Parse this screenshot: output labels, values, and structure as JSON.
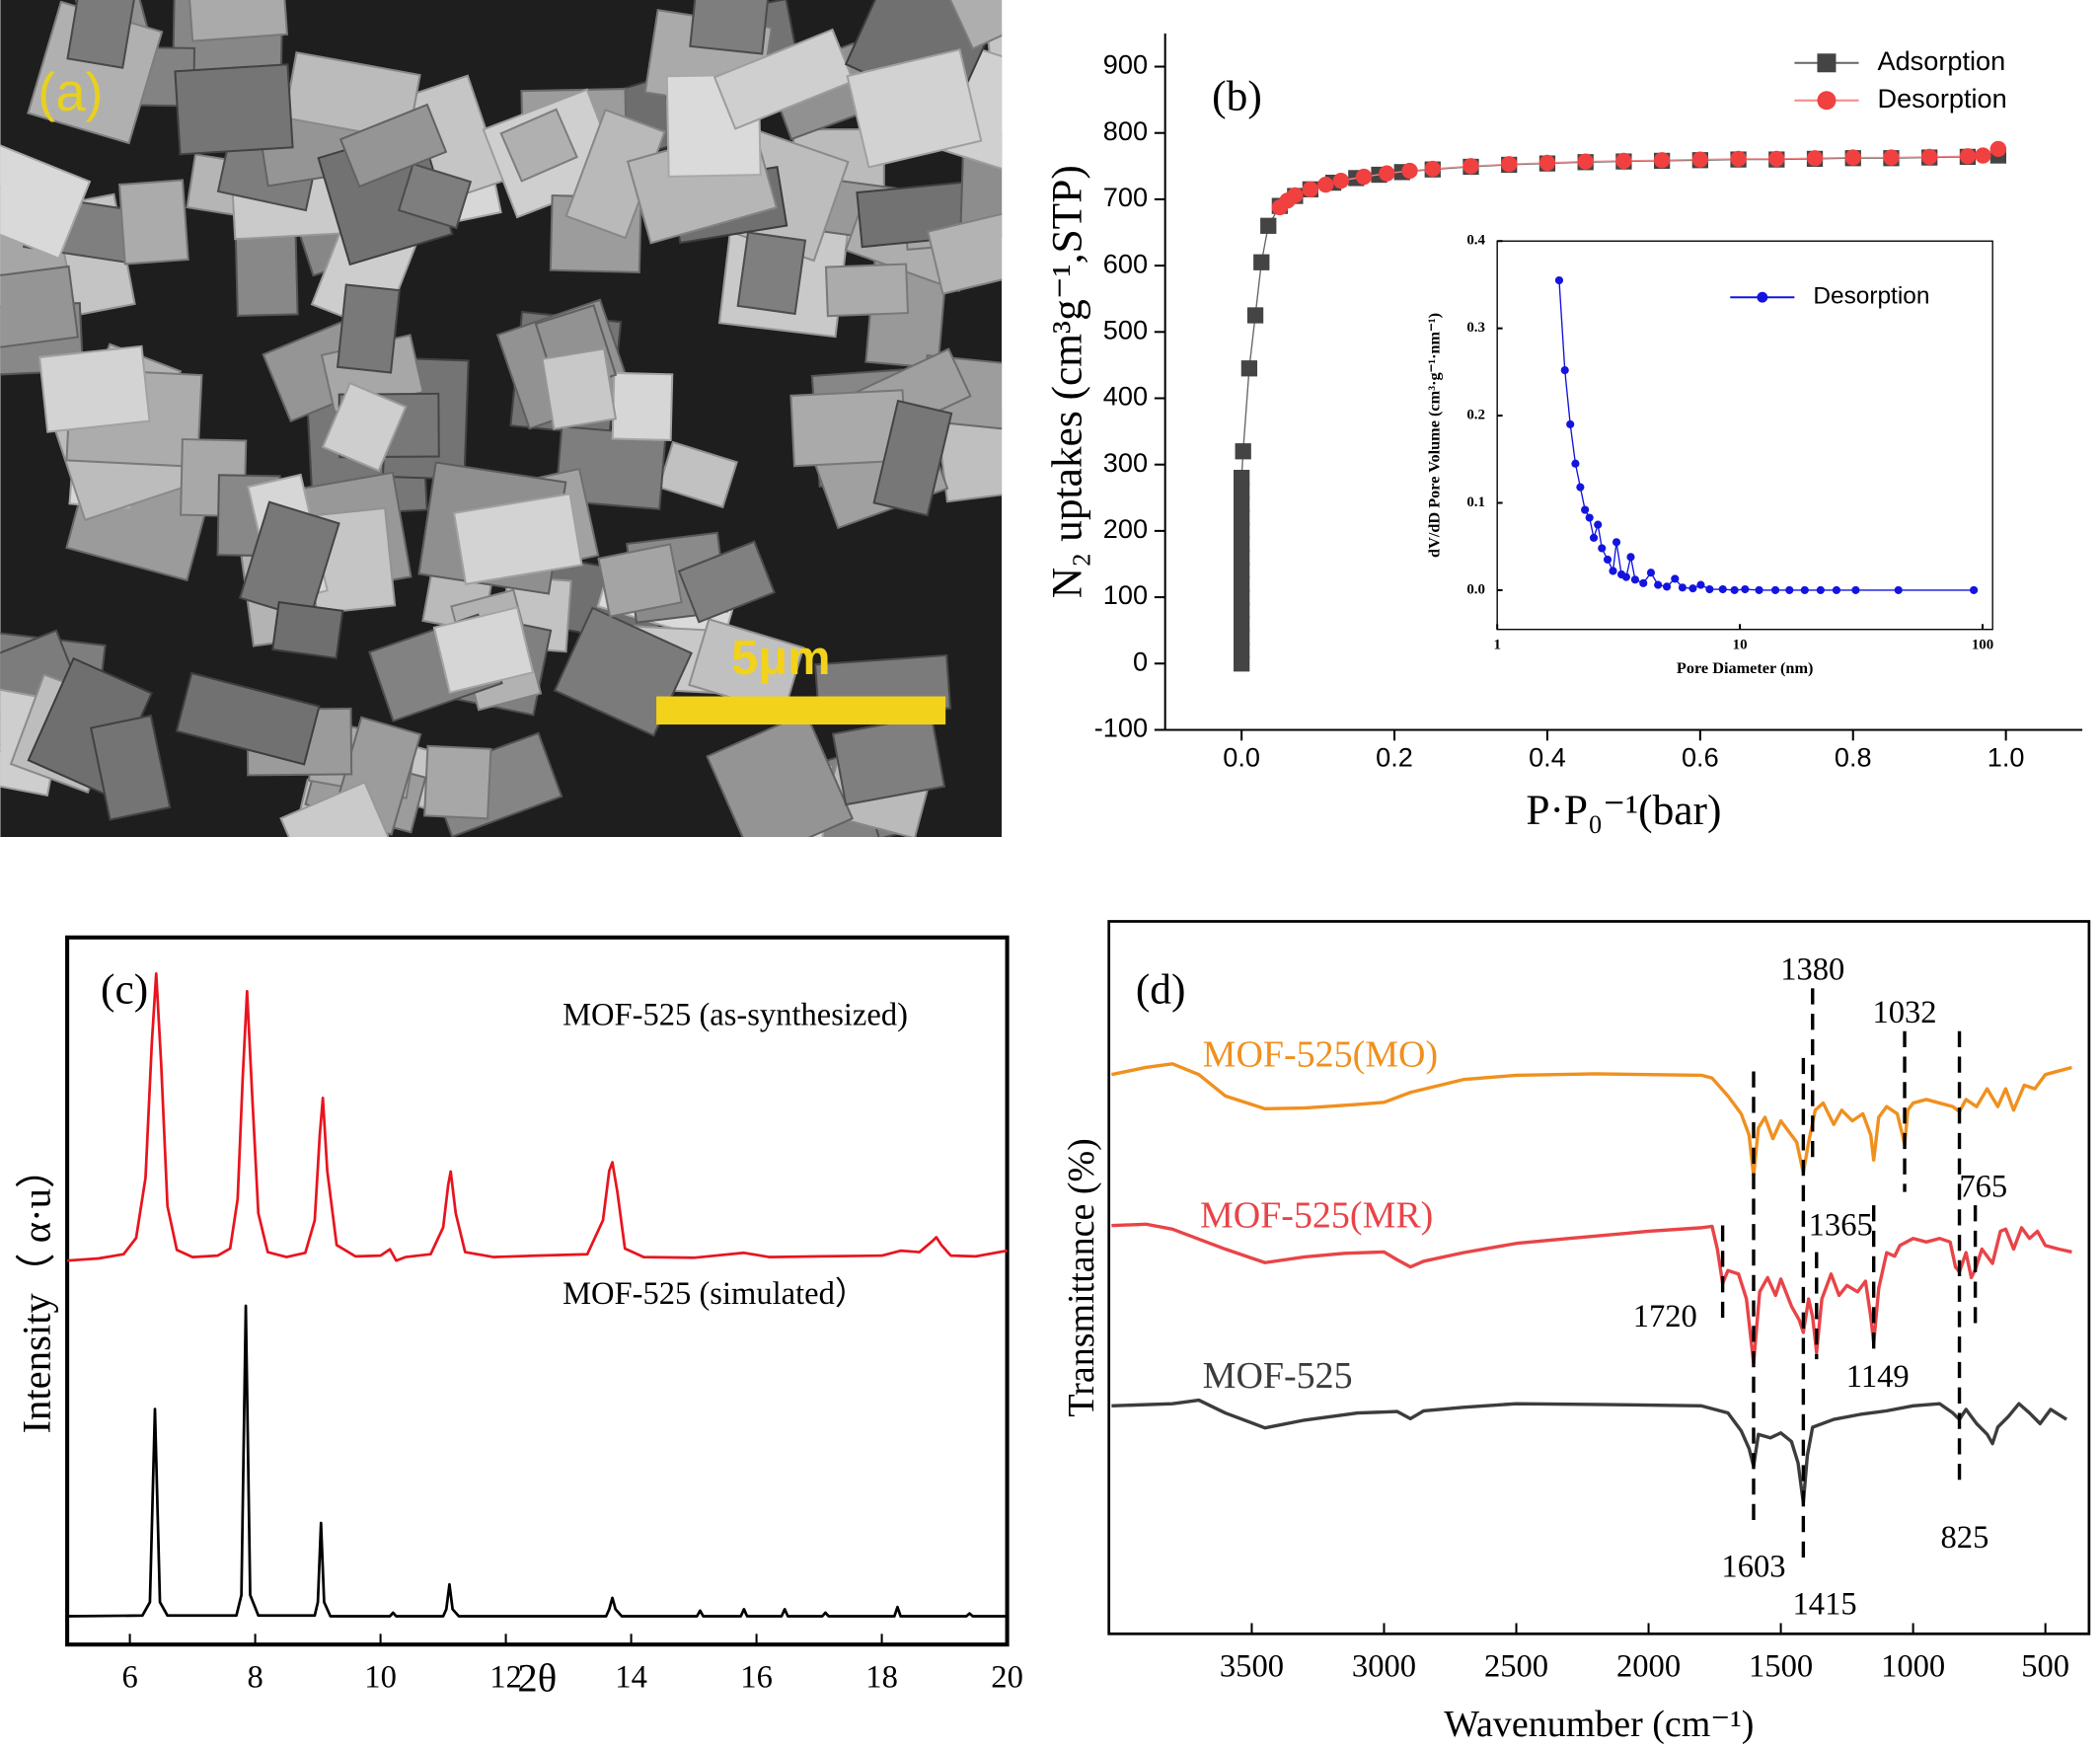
{
  "panel_a": {
    "label": "(a)",
    "scale_bar": "5μm"
  },
  "chart_data": [
    {
      "type": "scatter",
      "label": "(b)",
      "xlabel": "P·P₀⁻¹(bar)",
      "ylabel": "N₂ uptakes (cm³g⁻¹,STP)",
      "xlim": [
        -0.1,
        1.1
      ],
      "ylim": [
        -100,
        950
      ],
      "xticks": [
        {
          "value": 0,
          "label": "0.0"
        },
        0.2,
        0.4,
        0.6,
        0.8,
        {
          "value": 1,
          "label": "1.0"
        }
      ],
      "yticks": [
        -100,
        0,
        100,
        200,
        300,
        400,
        500,
        600,
        700,
        800,
        900
      ],
      "legend": "upper right",
      "series": [
        {
          "name": "Adsorption",
          "color": "#444444",
          "line_color": "#666666",
          "marker": "square",
          "x": [
            0,
            0,
            0,
            0,
            0,
            0,
            0,
            0,
            0,
            0,
            0,
            0,
            0,
            0,
            0,
            0.002,
            0.01,
            0.018,
            0.026,
            0.035,
            0.05,
            0.07,
            0.09,
            0.12,
            0.15,
            0.18,
            0.21,
            0.25,
            0.3,
            0.35,
            0.4,
            0.45,
            0.5,
            0.55,
            0.6,
            0.65,
            0.7,
            0.75,
            0.8,
            0.85,
            0.9,
            0.95,
            0.99
          ],
          "values": [
            0,
            20,
            40,
            60,
            80,
            100,
            120,
            140,
            160,
            180,
            200,
            220,
            240,
            260,
            280,
            320,
            445,
            525,
            605,
            660,
            690,
            705,
            715,
            725,
            732,
            737,
            741,
            745,
            749,
            752,
            754,
            756,
            757,
            758,
            759,
            760,
            760,
            761,
            762,
            762,
            763,
            764,
            766
          ]
        },
        {
          "name": "Desorption",
          "color": "#f04040",
          "line_color": "#f08a8a",
          "marker": "circle",
          "x": [
            0.99,
            0.97,
            0.95,
            0.9,
            0.85,
            0.8,
            0.75,
            0.7,
            0.65,
            0.6,
            0.55,
            0.5,
            0.45,
            0.4,
            0.35,
            0.3,
            0.25,
            0.22,
            0.19,
            0.16,
            0.13,
            0.11,
            0.09,
            0.07,
            0.06,
            0.05
          ],
          "values": [
            776,
            766,
            765,
            764,
            763,
            763,
            762,
            761,
            761,
            760,
            759,
            758,
            757,
            755,
            753,
            750,
            746,
            743,
            739,
            734,
            728,
            722,
            715,
            706,
            698,
            688
          ]
        }
      ]
    },
    {
      "type": "line",
      "log_x": true,
      "xlabel": "Pore Diameter (nm)",
      "ylabel": "dV/dD Pore Volume (cm³·g⁻¹·nm⁻¹)",
      "xlim": [
        1,
        110
      ],
      "ylim": [
        -0.045,
        0.4
      ],
      "xticks": [
        1,
        10,
        100
      ],
      "yticks": [
        {
          "value": 0,
          "label": "0.0"
        },
        0.1,
        0.2,
        0.3,
        0.4
      ],
      "legend": "upper right",
      "series": [
        {
          "name": "Desorption",
          "color": "#1414e0",
          "marker": "circle",
          "x": [
            1.8,
            1.9,
            2.0,
            2.1,
            2.2,
            2.3,
            2.4,
            2.5,
            2.6,
            2.7,
            2.85,
            3.0,
            3.1,
            3.25,
            3.4,
            3.55,
            3.7,
            4.0,
            4.3,
            4.6,
            5.0,
            5.4,
            5.8,
            6.4,
            6.9,
            7.5,
            8.5,
            9.5,
            10.5,
            12,
            14,
            16,
            18.5,
            21.5,
            25,
            30,
            45,
            92
          ],
          "values": [
            0.355,
            0.252,
            0.19,
            0.145,
            0.118,
            0.092,
            0.083,
            0.06,
            0.075,
            0.048,
            0.035,
            0.022,
            0.055,
            0.018,
            0.015,
            0.038,
            0.012,
            0.008,
            0.02,
            0.006,
            0.004,
            0.013,
            0.003,
            0.002,
            0.006,
            0.001,
            0.001,
            0,
            0.001,
            0,
            0,
            0,
            0,
            0,
            0,
            0,
            0,
            0
          ]
        }
      ]
    },
    {
      "type": "line",
      "label": "(c)",
      "xlabel": "2θ",
      "ylabel": "Intensity（ α·u）",
      "xlim": [
        5,
        20
      ],
      "ylim": [
        0,
        100
      ],
      "xticks": [
        6,
        8,
        10,
        12,
        14,
        16,
        18,
        20
      ],
      "series": [
        {
          "name": "MOF-525 (as-synthesized)",
          "color": "#e8141e",
          "x": [
            5.0,
            5.5,
            5.9,
            6.1,
            6.25,
            6.35,
            6.42,
            6.5,
            6.6,
            6.75,
            7.0,
            7.4,
            7.6,
            7.72,
            7.8,
            7.87,
            7.95,
            8.05,
            8.2,
            8.5,
            8.8,
            8.95,
            9.03,
            9.08,
            9.15,
            9.3,
            9.6,
            10.0,
            10.15,
            10.25,
            10.4,
            10.8,
            11.0,
            11.08,
            11.12,
            11.2,
            11.35,
            11.8,
            12.5,
            13.3,
            13.55,
            13.65,
            13.7,
            13.78,
            13.9,
            14.2,
            15.0,
            15.8,
            16.2,
            17.0,
            18.0,
            18.3,
            18.6,
            18.8,
            18.87,
            18.95,
            19.1,
            19.5,
            20.0
          ],
          "values": [
            54.3,
            54.6,
            55.2,
            57.5,
            66.0,
            85.0,
            94.9,
            82.0,
            62.0,
            55.8,
            54.8,
            55.0,
            56.0,
            63.0,
            80.0,
            92.4,
            78.0,
            61.0,
            55.5,
            54.8,
            55.4,
            60.0,
            72.0,
            77.3,
            67.0,
            56.5,
            54.9,
            55.0,
            55.9,
            54.3,
            54.8,
            55.2,
            59.0,
            65.0,
            66.9,
            61.0,
            55.5,
            54.8,
            55.0,
            55.2,
            60.0,
            67.0,
            68.2,
            64.0,
            56.0,
            54.8,
            54.7,
            55.4,
            54.8,
            54.9,
            55.0,
            55.7,
            55.5,
            57.0,
            57.6,
            56.5,
            55.0,
            54.9,
            55.7
          ]
        },
        {
          "name": "MOF-525 (simulated）",
          "color": "#000000",
          "x": [
            5.0,
            6.2,
            6.32,
            6.4,
            6.48,
            6.6,
            7.7,
            7.78,
            7.85,
            7.92,
            8.05,
            8.95,
            9.0,
            9.05,
            9.1,
            9.2,
            10.15,
            10.2,
            10.25,
            11.0,
            11.05,
            11.1,
            11.15,
            11.25,
            12.9,
            13.6,
            13.65,
            13.7,
            13.75,
            13.85,
            15.05,
            15.1,
            15.15,
            15.75,
            15.8,
            15.85,
            16.4,
            16.45,
            16.5,
            17.05,
            17.1,
            17.15,
            18.2,
            18.25,
            18.3,
            19.35,
            19.4,
            19.45,
            20.0
          ],
          "values": [
            4.0,
            4.1,
            6.0,
            33.3,
            6.0,
            4.1,
            4.1,
            7.0,
            47.9,
            7.0,
            4.1,
            4.1,
            6.0,
            17.2,
            6.0,
            4.0,
            4.0,
            4.5,
            4.0,
            4.0,
            5.0,
            8.5,
            5.0,
            4.0,
            4.0,
            4.0,
            5.0,
            6.6,
            5.0,
            4.0,
            4.0,
            4.8,
            4.0,
            4.0,
            5.0,
            4.0,
            4.0,
            5.0,
            4.0,
            4.0,
            4.5,
            4.0,
            4.0,
            5.3,
            4.0,
            4.0,
            4.4,
            4.0,
            4.0
          ]
        }
      ]
    },
    {
      "type": "line",
      "label": "(d)",
      "xlabel": "Wavenumber (cm⁻¹)",
      "ylabel": "Transmittance (%)",
      "xlim": [
        4040,
        335
      ],
      "ylim": [
        0,
        100
      ],
      "xticks": [
        3500,
        3000,
        2500,
        2000,
        1500,
        1000,
        500
      ],
      "peak_labels": [
        1380,
        1032,
        765,
        1365,
        1720,
        1149,
        1603,
        1415,
        825
      ],
      "series": [
        {
          "name": "MOF-525(MO)",
          "color": "#f0901e",
          "x": [
            4030,
            3900,
            3800,
            3700,
            3600,
            3450,
            3300,
            3100,
            3000,
            2900,
            2700,
            2500,
            2200,
            2000,
            1800,
            1760,
            1700,
            1650,
            1620,
            1603,
            1585,
            1560,
            1530,
            1500,
            1470,
            1440,
            1415,
            1395,
            1370,
            1340,
            1300,
            1270,
            1230,
            1190,
            1160,
            1149,
            1130,
            1100,
            1060,
            1040,
            1032,
            1020,
            1000,
            950,
            900,
            850,
            825,
            800,
            760,
            720,
            680,
            650,
            620,
            580,
            540,
            500,
            450,
            400
          ],
          "values": [
            78.5,
            79.5,
            80.0,
            78.5,
            75.5,
            73.7,
            73.8,
            74.3,
            74.6,
            76.0,
            77.8,
            78.4,
            78.6,
            78.5,
            78.4,
            78.0,
            75.5,
            73.0,
            70.0,
            64.3,
            71.0,
            72.5,
            69.5,
            72.0,
            70.5,
            69.0,
            64.7,
            69.0,
            73.5,
            74.5,
            71.5,
            73.5,
            72.0,
            73.0,
            70.0,
            66.5,
            72.5,
            74.0,
            73.0,
            70.0,
            68.6,
            73.5,
            74.5,
            75.0,
            74.5,
            74.0,
            73.3,
            75.0,
            74.0,
            76.5,
            74.0,
            76.5,
            73.5,
            77.0,
            76.5,
            78.5,
            79.0,
            79.5
          ]
        },
        {
          "name": "MOF-525(MR)",
          "color": "#e84448",
          "x": [
            4030,
            3900,
            3800,
            3600,
            3450,
            3300,
            3150,
            3000,
            2950,
            2900,
            2850,
            2700,
            2500,
            2300,
            2000,
            1800,
            1760,
            1740,
            1720,
            1700,
            1660,
            1630,
            1603,
            1580,
            1550,
            1520,
            1500,
            1460,
            1430,
            1415,
            1395,
            1380,
            1365,
            1345,
            1310,
            1280,
            1250,
            1210,
            1180,
            1160,
            1149,
            1130,
            1100,
            1070,
            1050,
            1000,
            950,
            900,
            860,
            840,
            825,
            800,
            780,
            765,
            740,
            700,
            670,
            650,
            620,
            590,
            560,
            530,
            500,
            450,
            400
          ],
          "values": [
            57.3,
            57.5,
            56.8,
            54.0,
            52.1,
            52.9,
            53.4,
            53.6,
            52.5,
            51.5,
            52.3,
            53.5,
            54.8,
            55.5,
            56.5,
            57.0,
            57.2,
            54.0,
            49.2,
            51.0,
            50.5,
            47.0,
            38.0,
            48.0,
            50.0,
            47.5,
            49.8,
            46.0,
            44.0,
            42.3,
            47.0,
            44.5,
            39.5,
            47.0,
            50.5,
            47.5,
            48.9,
            48.0,
            49.5,
            44.5,
            40.8,
            48.5,
            53.5,
            53.0,
            54.5,
            55.5,
            55.0,
            55.5,
            55.0,
            51.5,
            50.8,
            53.5,
            50.0,
            51.1,
            54.0,
            52.0,
            56.5,
            56.8,
            54.0,
            57.0,
            55.5,
            56.5,
            54.5,
            54.0,
            53.6
          ]
        },
        {
          "name": "MOF-525",
          "color": "#3c3c3c",
          "x": [
            4030,
            3800,
            3700,
            3600,
            3450,
            3300,
            3100,
            2950,
            2900,
            2850,
            2700,
            2500,
            2200,
            2000,
            1800,
            1700,
            1650,
            1620,
            1603,
            1585,
            1540,
            1500,
            1460,
            1435,
            1415,
            1400,
            1380,
            1300,
            1200,
            1100,
            1000,
            900,
            850,
            825,
            800,
            760,
            720,
            700,
            680,
            640,
            600,
            560,
            520,
            480,
            420
          ],
          "values": [
            32.0,
            32.3,
            32.8,
            31.0,
            28.9,
            30.0,
            31.0,
            31.2,
            30.2,
            31.3,
            31.8,
            32.3,
            32.2,
            32.1,
            32.0,
            31.0,
            28.5,
            26.0,
            23.5,
            28.0,
            27.5,
            28.2,
            27.0,
            24.0,
            18.4,
            25.0,
            29.0,
            30.1,
            30.8,
            31.3,
            32.0,
            32.3,
            31.0,
            30.1,
            31.5,
            29.5,
            28.0,
            26.7,
            29.0,
            30.5,
            32.3,
            31.0,
            29.5,
            31.5,
            30.1
          ]
        }
      ]
    }
  ]
}
